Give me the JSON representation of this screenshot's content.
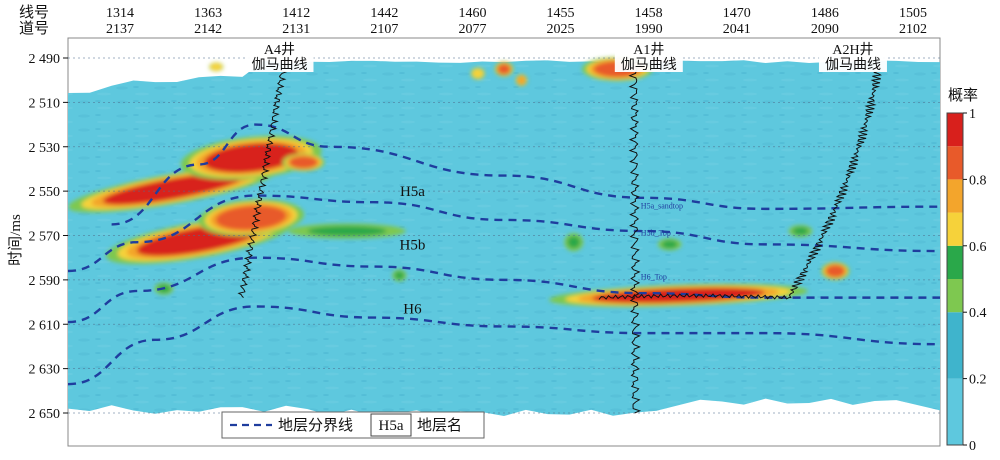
{
  "chart_data": {
    "type": "heatmap",
    "title": "",
    "ylabel": "时间/ms",
    "header_labels": {
      "line": "线号",
      "trace": "道号"
    },
    "columns": [
      {
        "line": "1314",
        "trace": "2137"
      },
      {
        "line": "1363",
        "trace": "2142"
      },
      {
        "line": "1412",
        "trace": "2131"
      },
      {
        "line": "1442",
        "trace": "2107"
      },
      {
        "line": "1460",
        "trace": "2077"
      },
      {
        "line": "1455",
        "trace": "2025"
      },
      {
        "line": "1458",
        "trace": "1990"
      },
      {
        "line": "1470",
        "trace": "2041"
      },
      {
        "line": "1486",
        "trace": "2090"
      },
      {
        "line": "1505",
        "trace": "2102"
      }
    ],
    "y_ticks": [
      "2 490",
      "2 510",
      "2 530",
      "2 550",
      "2 570",
      "2 590",
      "2 610",
      "2 630",
      "2 650"
    ],
    "y_range": [
      2490,
      2650
    ],
    "y_axis_reversed": true,
    "colorbar": {
      "label": "概率",
      "ticks": [
        "0",
        "0.2",
        "0.4",
        "0.6",
        "0.8",
        "1"
      ],
      "range": [
        0,
        1
      ],
      "bands": [
        {
          "from": 0.0,
          "to": 0.2,
          "color": "#5ec8de"
        },
        {
          "from": 0.2,
          "to": 0.4,
          "color": "#3fb4cc"
        },
        {
          "from": 0.4,
          "to": 0.5,
          "color": "#7ec850"
        },
        {
          "from": 0.5,
          "to": 0.6,
          "color": "#2aa84a"
        },
        {
          "from": 0.6,
          "to": 0.7,
          "color": "#f6d23a"
        },
        {
          "from": 0.7,
          "to": 0.8,
          "color": "#f3a52c"
        },
        {
          "from": 0.8,
          "to": 0.9,
          "color": "#e85a2a"
        },
        {
          "from": 0.9,
          "to": 1.0,
          "color": "#d8201c"
        }
      ]
    },
    "wells": [
      {
        "name": "A4井",
        "curve": "伽马曲线",
        "line": "1363"
      },
      {
        "name": "A1井",
        "curve": "伽马曲线",
        "line": "1458"
      },
      {
        "name": "A2H井",
        "curve": "伽马曲线",
        "line": "1505"
      }
    ],
    "layers": [
      "H5a",
      "H5b",
      "H6"
    ],
    "markers": [
      "H5a_sandtop",
      "H5b_Top",
      "H6_Top"
    ],
    "legend": {
      "boundary": "地层分界线",
      "sample": "H5a",
      "name": "地层名",
      "position": "bottom"
    },
    "boundaries": [
      {
        "points": [
          [
            0.05,
            2565
          ],
          [
            0.15,
            2538
          ],
          [
            0.215,
            2520
          ],
          [
            0.3,
            2530
          ],
          [
            0.5,
            2543
          ],
          [
            0.66,
            2553
          ],
          [
            0.8,
            2558
          ],
          [
            1.0,
            2557
          ]
        ]
      },
      {
        "points": [
          [
            0.0,
            2586
          ],
          [
            0.08,
            2573
          ],
          [
            0.215,
            2552
          ],
          [
            0.35,
            2555
          ],
          [
            0.5,
            2563
          ],
          [
            0.66,
            2568
          ],
          [
            0.8,
            2574
          ],
          [
            1.0,
            2577
          ]
        ]
      },
      {
        "points": [
          [
            0.0,
            2609
          ],
          [
            0.08,
            2595
          ],
          [
            0.215,
            2580
          ],
          [
            0.35,
            2584
          ],
          [
            0.5,
            2590
          ],
          [
            0.66,
            2596
          ],
          [
            0.8,
            2598
          ],
          [
            1.0,
            2598
          ]
        ]
      },
      {
        "points": [
          [
            0.0,
            2637
          ],
          [
            0.1,
            2617
          ],
          [
            0.215,
            2602
          ],
          [
            0.35,
            2607
          ],
          [
            0.5,
            2611
          ],
          [
            0.66,
            2614
          ],
          [
            0.8,
            2614
          ],
          [
            1.0,
            2619
          ]
        ]
      }
    ],
    "bodies": [
      {
        "x": 0.12,
        "y": 2549,
        "rx": 0.09,
        "ry": 5,
        "p": 0.95,
        "rot": -10
      },
      {
        "x": 0.21,
        "y": 2535,
        "rx": 0.06,
        "ry": 7,
        "p": 0.92,
        "rot": -6
      },
      {
        "x": 0.27,
        "y": 2537,
        "rx": 0.018,
        "ry": 3,
        "p": 0.82,
        "rot": 0
      },
      {
        "x": 0.15,
        "y": 2572,
        "rx": 0.08,
        "ry": 6,
        "p": 0.95,
        "rot": -10
      },
      {
        "x": 0.21,
        "y": 2562,
        "rx": 0.045,
        "ry": 6,
        "p": 0.9,
        "rot": -4
      },
      {
        "x": 0.32,
        "y": 2568,
        "rx": 0.05,
        "ry": 2.5,
        "p": 0.6,
        "rot": 0
      },
      {
        "x": 0.7,
        "y": 2597,
        "rx": 0.11,
        "ry": 3.5,
        "p": 0.95,
        "rot": -2
      },
      {
        "x": 0.88,
        "y": 2586,
        "rx": 0.012,
        "ry": 3,
        "p": 0.9,
        "rot": 0
      },
      {
        "x": 0.63,
        "y": 2495,
        "rx": 0.03,
        "ry": 4,
        "p": 0.88,
        "rot": 0
      },
      {
        "x": 0.5,
        "y": 2495,
        "rx": 0.008,
        "ry": 2.5,
        "p": 0.82,
        "rot": 0
      },
      {
        "x": 0.47,
        "y": 2497,
        "rx": 0.006,
        "ry": 2,
        "p": 0.7,
        "rot": 0
      },
      {
        "x": 0.52,
        "y": 2500,
        "rx": 0.005,
        "ry": 2,
        "p": 0.75,
        "rot": 0
      },
      {
        "x": 0.17,
        "y": 2494,
        "rx": 0.006,
        "ry": 1.5,
        "p": 0.7,
        "rot": 0
      },
      {
        "x": 0.58,
        "y": 2573,
        "rx": 0.008,
        "ry": 3,
        "p": 0.6,
        "rot": 0
      },
      {
        "x": 0.69,
        "y": 2574,
        "rx": 0.01,
        "ry": 2,
        "p": 0.6,
        "rot": 0
      },
      {
        "x": 0.84,
        "y": 2568,
        "rx": 0.01,
        "ry": 2,
        "p": 0.55,
        "rot": 0
      },
      {
        "x": 0.11,
        "y": 2594,
        "rx": 0.008,
        "ry": 2,
        "p": 0.55,
        "rot": 0
      },
      {
        "x": 0.38,
        "y": 2588,
        "rx": 0.006,
        "ry": 2,
        "p": 0.55,
        "rot": 0
      }
    ]
  }
}
